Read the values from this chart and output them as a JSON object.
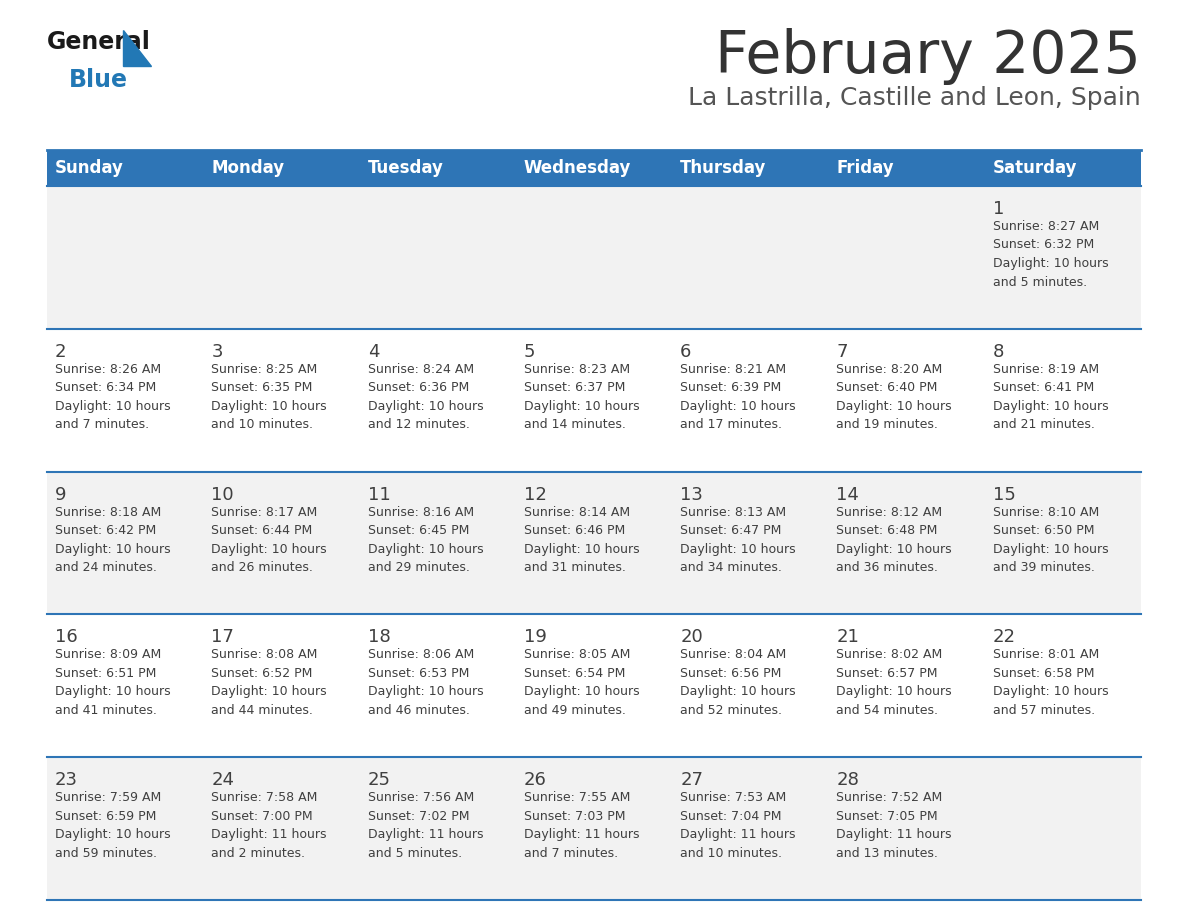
{
  "title": "February 2025",
  "subtitle": "La Lastrilla, Castille and Leon, Spain",
  "header_bg_color": "#2E75B6",
  "header_text_color": "#FFFFFF",
  "day_names": [
    "Sunday",
    "Monday",
    "Tuesday",
    "Wednesday",
    "Thursday",
    "Friday",
    "Saturday"
  ],
  "row_bg_colors": [
    "#F2F2F2",
    "#FFFFFF",
    "#F2F2F2",
    "#FFFFFF",
    "#F2F2F2"
  ],
  "cell_border_color": "#2E75B6",
  "date_color": "#404040",
  "info_color": "#404040",
  "title_color": "#333333",
  "subtitle_color": "#555555",
  "logo_general_color": "#1A1A1A",
  "logo_blue_color": "#2278B5",
  "weeks": [
    {
      "days": [
        {
          "day": null,
          "info": null
        },
        {
          "day": null,
          "info": null
        },
        {
          "day": null,
          "info": null
        },
        {
          "day": null,
          "info": null
        },
        {
          "day": null,
          "info": null
        },
        {
          "day": null,
          "info": null
        },
        {
          "day": 1,
          "info": "Sunrise: 8:27 AM\nSunset: 6:32 PM\nDaylight: 10 hours\nand 5 minutes."
        }
      ]
    },
    {
      "days": [
        {
          "day": 2,
          "info": "Sunrise: 8:26 AM\nSunset: 6:34 PM\nDaylight: 10 hours\nand 7 minutes."
        },
        {
          "day": 3,
          "info": "Sunrise: 8:25 AM\nSunset: 6:35 PM\nDaylight: 10 hours\nand 10 minutes."
        },
        {
          "day": 4,
          "info": "Sunrise: 8:24 AM\nSunset: 6:36 PM\nDaylight: 10 hours\nand 12 minutes."
        },
        {
          "day": 5,
          "info": "Sunrise: 8:23 AM\nSunset: 6:37 PM\nDaylight: 10 hours\nand 14 minutes."
        },
        {
          "day": 6,
          "info": "Sunrise: 8:21 AM\nSunset: 6:39 PM\nDaylight: 10 hours\nand 17 minutes."
        },
        {
          "day": 7,
          "info": "Sunrise: 8:20 AM\nSunset: 6:40 PM\nDaylight: 10 hours\nand 19 minutes."
        },
        {
          "day": 8,
          "info": "Sunrise: 8:19 AM\nSunset: 6:41 PM\nDaylight: 10 hours\nand 21 minutes."
        }
      ]
    },
    {
      "days": [
        {
          "day": 9,
          "info": "Sunrise: 8:18 AM\nSunset: 6:42 PM\nDaylight: 10 hours\nand 24 minutes."
        },
        {
          "day": 10,
          "info": "Sunrise: 8:17 AM\nSunset: 6:44 PM\nDaylight: 10 hours\nand 26 minutes."
        },
        {
          "day": 11,
          "info": "Sunrise: 8:16 AM\nSunset: 6:45 PM\nDaylight: 10 hours\nand 29 minutes."
        },
        {
          "day": 12,
          "info": "Sunrise: 8:14 AM\nSunset: 6:46 PM\nDaylight: 10 hours\nand 31 minutes."
        },
        {
          "day": 13,
          "info": "Sunrise: 8:13 AM\nSunset: 6:47 PM\nDaylight: 10 hours\nand 34 minutes."
        },
        {
          "day": 14,
          "info": "Sunrise: 8:12 AM\nSunset: 6:48 PM\nDaylight: 10 hours\nand 36 minutes."
        },
        {
          "day": 15,
          "info": "Sunrise: 8:10 AM\nSunset: 6:50 PM\nDaylight: 10 hours\nand 39 minutes."
        }
      ]
    },
    {
      "days": [
        {
          "day": 16,
          "info": "Sunrise: 8:09 AM\nSunset: 6:51 PM\nDaylight: 10 hours\nand 41 minutes."
        },
        {
          "day": 17,
          "info": "Sunrise: 8:08 AM\nSunset: 6:52 PM\nDaylight: 10 hours\nand 44 minutes."
        },
        {
          "day": 18,
          "info": "Sunrise: 8:06 AM\nSunset: 6:53 PM\nDaylight: 10 hours\nand 46 minutes."
        },
        {
          "day": 19,
          "info": "Sunrise: 8:05 AM\nSunset: 6:54 PM\nDaylight: 10 hours\nand 49 minutes."
        },
        {
          "day": 20,
          "info": "Sunrise: 8:04 AM\nSunset: 6:56 PM\nDaylight: 10 hours\nand 52 minutes."
        },
        {
          "day": 21,
          "info": "Sunrise: 8:02 AM\nSunset: 6:57 PM\nDaylight: 10 hours\nand 54 minutes."
        },
        {
          "day": 22,
          "info": "Sunrise: 8:01 AM\nSunset: 6:58 PM\nDaylight: 10 hours\nand 57 minutes."
        }
      ]
    },
    {
      "days": [
        {
          "day": 23,
          "info": "Sunrise: 7:59 AM\nSunset: 6:59 PM\nDaylight: 10 hours\nand 59 minutes."
        },
        {
          "day": 24,
          "info": "Sunrise: 7:58 AM\nSunset: 7:00 PM\nDaylight: 11 hours\nand 2 minutes."
        },
        {
          "day": 25,
          "info": "Sunrise: 7:56 AM\nSunset: 7:02 PM\nDaylight: 11 hours\nand 5 minutes."
        },
        {
          "day": 26,
          "info": "Sunrise: 7:55 AM\nSunset: 7:03 PM\nDaylight: 11 hours\nand 7 minutes."
        },
        {
          "day": 27,
          "info": "Sunrise: 7:53 AM\nSunset: 7:04 PM\nDaylight: 11 hours\nand 10 minutes."
        },
        {
          "day": 28,
          "info": "Sunrise: 7:52 AM\nSunset: 7:05 PM\nDaylight: 11 hours\nand 13 minutes."
        },
        {
          "day": null,
          "info": null
        }
      ]
    }
  ]
}
